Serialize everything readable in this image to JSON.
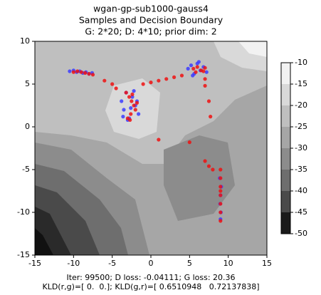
{
  "chart_data": {
    "type": "scatter",
    "title": [
      "wgan-gp-sub1000-gauss4",
      "Samples and Decision Boundary",
      "G: 2*20; D: 4*10; prior dim: 2"
    ],
    "x_label": [
      "Iter: 99500; D loss: -0.04111; G loss: 20.36",
      "KLD(r,g)=[ 0.  0.]; KLD(g,r)=[ 0.6510948   0.72137838]"
    ],
    "xlim": [
      -15,
      15
    ],
    "ylim": [
      -15,
      10
    ],
    "xticks": [
      -15,
      -10,
      -5,
      0,
      5,
      10,
      15
    ],
    "yticks": [
      -15,
      -10,
      -5,
      0,
      5,
      10
    ],
    "series": [
      {
        "color": "#3b3bff",
        "x": [
          -10.5,
          -10,
          -9.6,
          -9.2,
          -8.8,
          -8.4,
          -8,
          -7.6,
          -3.8,
          -3.5,
          -3.2,
          -2.8,
          -2.4,
          -2,
          -1.6,
          -3,
          -2.2,
          -3.6,
          -1.8,
          -2.6,
          4.8,
          5.2,
          5.6,
          6,
          6.4,
          6.8,
          7.2,
          5.4,
          6.2,
          8.9,
          9.1,
          9,
          8.95,
          9.05,
          9
        ],
        "y": [
          6.5,
          6.6,
          6.4,
          6.5,
          6.3,
          6.4,
          6.2,
          6.3,
          3,
          2,
          4,
          1,
          3.5,
          2.5,
          1.5,
          0.8,
          4.2,
          1.2,
          3,
          2.2,
          6.8,
          7.2,
          6.2,
          7.4,
          6.6,
          7,
          6.4,
          6,
          7.6,
          -6,
          -7,
          -8,
          -9,
          -10,
          -10.8
        ]
      },
      {
        "color": "#ee1111",
        "x": [
          -10,
          -9.5,
          -9,
          -8.5,
          -8,
          -7.5,
          -3.2,
          -2.8,
          -2.5,
          -2.2,
          -2,
          -2.6,
          -3,
          -2.4,
          -1.8,
          -2.7,
          5.5,
          6,
          6.5,
          7,
          5.8,
          6.8,
          9,
          9,
          9,
          9,
          9,
          9,
          9,
          9,
          -6,
          -5,
          -4.5,
          -1,
          0,
          1,
          2,
          3,
          4,
          7,
          7,
          7.5,
          7.7,
          1,
          5,
          7,
          7.5,
          8
        ],
        "y": [
          6.4,
          6.5,
          6.4,
          6.3,
          6.2,
          6.1,
          4,
          3.5,
          3,
          2.5,
          2,
          1.5,
          1,
          3.8,
          2.8,
          0.8,
          6.8,
          7,
          6.6,
          6.9,
          6.4,
          6.5,
          -5,
          -6,
          -7,
          -7.5,
          -8,
          -9,
          -10,
          -11,
          5.4,
          5,
          4.5,
          5,
          5.2,
          5.4,
          5.6,
          5.8,
          6,
          5.6,
          4.8,
          3,
          1.2,
          -1.5,
          -1.8,
          -4,
          -4.6,
          -5
        ]
      }
    ],
    "colorbar": {
      "lim": [
        -50,
        -10
      ],
      "ticks": [
        -10,
        -15,
        -20,
        -25,
        -30,
        -35,
        -40,
        -45,
        -50
      ],
      "colors": [
        "#f2f2f2",
        "#d9d9d9",
        "#bfbfbf",
        "#a6a6a6",
        "#8c8c8c",
        "#6e6e6e",
        "#4a4a4a",
        "#1a1a1a"
      ]
    }
  }
}
